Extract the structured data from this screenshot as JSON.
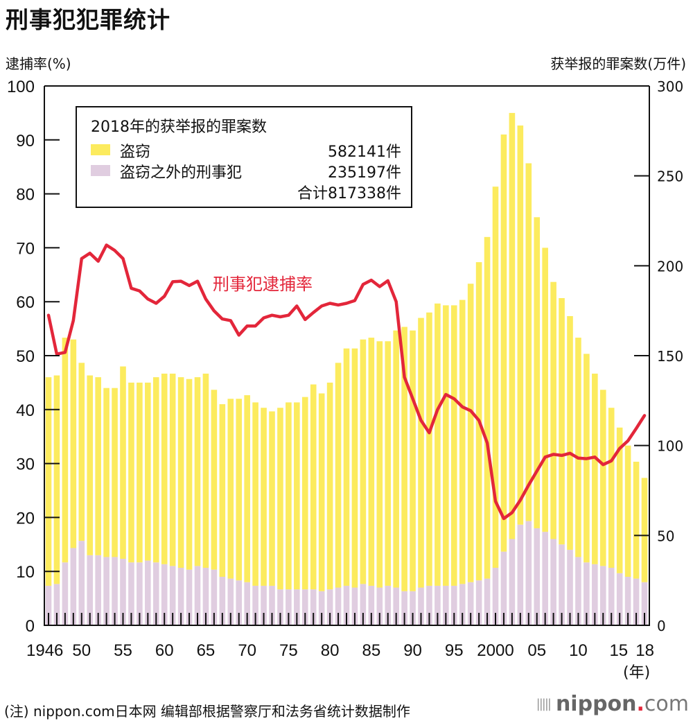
{
  "title": "刑事犯犯罪统计",
  "left_axis_label": "逮捕率(%)",
  "right_axis_label": "获举报的罪案数(万件)",
  "year_unit": "(年)",
  "line_label": "刑事犯逮捕率",
  "legend": {
    "title": "2018年的获举报的罪案数",
    "items": [
      {
        "name": "盗窃",
        "value": "582141件",
        "color": "#fceb5e"
      },
      {
        "name": "盗窃之外的刑事犯",
        "value": "235197件",
        "color": "#e0cde0"
      }
    ],
    "total": "合计817338件"
  },
  "footnote": "(注) nippon.com日本网 编辑部根据警察厅和法务省统计数据制作",
  "logo": {
    "brand": "nippon",
    "dot": ".",
    "tld": "com"
  },
  "colors": {
    "theft": "#fceb5e",
    "other": "#e0cde0",
    "rate_line": "#e3263a"
  },
  "chart_data": {
    "type": "bar+line",
    "title": "刑事犯犯罪统计",
    "x": [
      1946,
      1947,
      1948,
      1949,
      1950,
      1951,
      1952,
      1953,
      1954,
      1955,
      1956,
      1957,
      1958,
      1959,
      1960,
      1961,
      1962,
      1963,
      1964,
      1965,
      1966,
      1967,
      1968,
      1969,
      1970,
      1971,
      1972,
      1973,
      1974,
      1975,
      1976,
      1977,
      1978,
      1979,
      1980,
      1981,
      1982,
      1983,
      1984,
      1985,
      1986,
      1987,
      1988,
      1989,
      1990,
      1991,
      1992,
      1993,
      1994,
      1995,
      1996,
      1997,
      1998,
      1999,
      2000,
      2001,
      2002,
      2003,
      2004,
      2005,
      2006,
      2007,
      2008,
      2009,
      2010,
      2011,
      2012,
      2013,
      2014,
      2015,
      2016,
      2017,
      2018
    ],
    "x_tick_labels": [
      {
        "year": 1946,
        "label": "1946"
      },
      {
        "year": 1950,
        "label": "50"
      },
      {
        "year": 1955,
        "label": "55"
      },
      {
        "year": 1960,
        "label": "60"
      },
      {
        "year": 1965,
        "label": "65"
      },
      {
        "year": 1970,
        "label": "70"
      },
      {
        "year": 1975,
        "label": "75"
      },
      {
        "year": 1980,
        "label": "80"
      },
      {
        "year": 1985,
        "label": "85"
      },
      {
        "year": 1990,
        "label": "90"
      },
      {
        "year": 1995,
        "label": "95"
      },
      {
        "year": 2000,
        "label": "2000"
      },
      {
        "year": 2005,
        "label": "05"
      },
      {
        "year": 2010,
        "label": "10"
      },
      {
        "year": 2015,
        "label": "15"
      },
      {
        "year": 2018,
        "label": "18"
      }
    ],
    "left_axis": {
      "label": "逮捕率(%)",
      "range": [
        0,
        100
      ],
      "ticks": [
        0,
        10,
        20,
        30,
        40,
        50,
        60,
        70,
        80,
        90,
        100
      ]
    },
    "right_axis": {
      "label": "获举报的罪案数(万件)",
      "range": [
        0,
        300
      ],
      "ticks": [
        0,
        50,
        100,
        150,
        200,
        250,
        300
      ]
    },
    "series": [
      {
        "name": "盗窃之外的刑事犯",
        "type": "stacked-bar",
        "axis": "right",
        "unit": "万件",
        "values": [
          22,
          23,
          35,
          43,
          47,
          39,
          39,
          38,
          38,
          37,
          35,
          35,
          36,
          35,
          34,
          33,
          32,
          31,
          33,
          32,
          31,
          27,
          26,
          25,
          24,
          22,
          22,
          22,
          20,
          20,
          20,
          20,
          20,
          19,
          20,
          21,
          22,
          21,
          23,
          22,
          21,
          22,
          21,
          19,
          19,
          21,
          22,
          22,
          22,
          22,
          23,
          24,
          25,
          26,
          32,
          41,
          48,
          56,
          58,
          54,
          52,
          48,
          45,
          42,
          38,
          35,
          34,
          33,
          32,
          29,
          27,
          26,
          24
        ]
      },
      {
        "name": "盗窃",
        "type": "stacked-bar",
        "axis": "right",
        "unit": "万件",
        "values": [
          116,
          116,
          125,
          116,
          99,
          100,
          99,
          94,
          94,
          107,
          100,
          100,
          99,
          103,
          106,
          107,
          106,
          106,
          105,
          108,
          100,
          96,
          100,
          101,
          104,
          102,
          99,
          97,
          101,
          104,
          104,
          107,
          114,
          110,
          115,
          125,
          132,
          133,
          136,
          138,
          137,
          136,
          143,
          147,
          145,
          150,
          152,
          157,
          156,
          156,
          158,
          166,
          177,
          190,
          212,
          232,
          237,
          222,
          199,
          173,
          158,
          143,
          137,
          130,
          122,
          116,
          106,
          98,
          89,
          81,
          73,
          65,
          58
        ]
      },
      {
        "name": "刑事犯逮捕率",
        "type": "line",
        "axis": "left",
        "unit": "%",
        "values": [
          57.5,
          50.3,
          50.6,
          56.5,
          68.0,
          69.0,
          67.5,
          70.5,
          69.5,
          68.0,
          62.5,
          62.0,
          60.5,
          59.7,
          61.0,
          63.7,
          63.8,
          63.0,
          63.8,
          60.5,
          58.3,
          56.8,
          56.5,
          53.8,
          55.5,
          55.5,
          57.0,
          57.5,
          57.2,
          57.5,
          59.2,
          56.7,
          58.0,
          59.2,
          59.7,
          59.4,
          59.7,
          60.2,
          63.2,
          64.0,
          62.8,
          63.9,
          60.0,
          46.0,
          42.0,
          38.0,
          35.7,
          40.0,
          42.8,
          42.0,
          40.5,
          39.8,
          38.0,
          33.8,
          23.0,
          19.8,
          20.9,
          23.2,
          26.0,
          28.6,
          31.2,
          31.7,
          31.5,
          31.9,
          31.0,
          30.9,
          31.2,
          29.8,
          30.5,
          32.8,
          34.2,
          36.5,
          38.9
        ]
      }
    ],
    "legend_position": "top-left",
    "grid": false
  }
}
